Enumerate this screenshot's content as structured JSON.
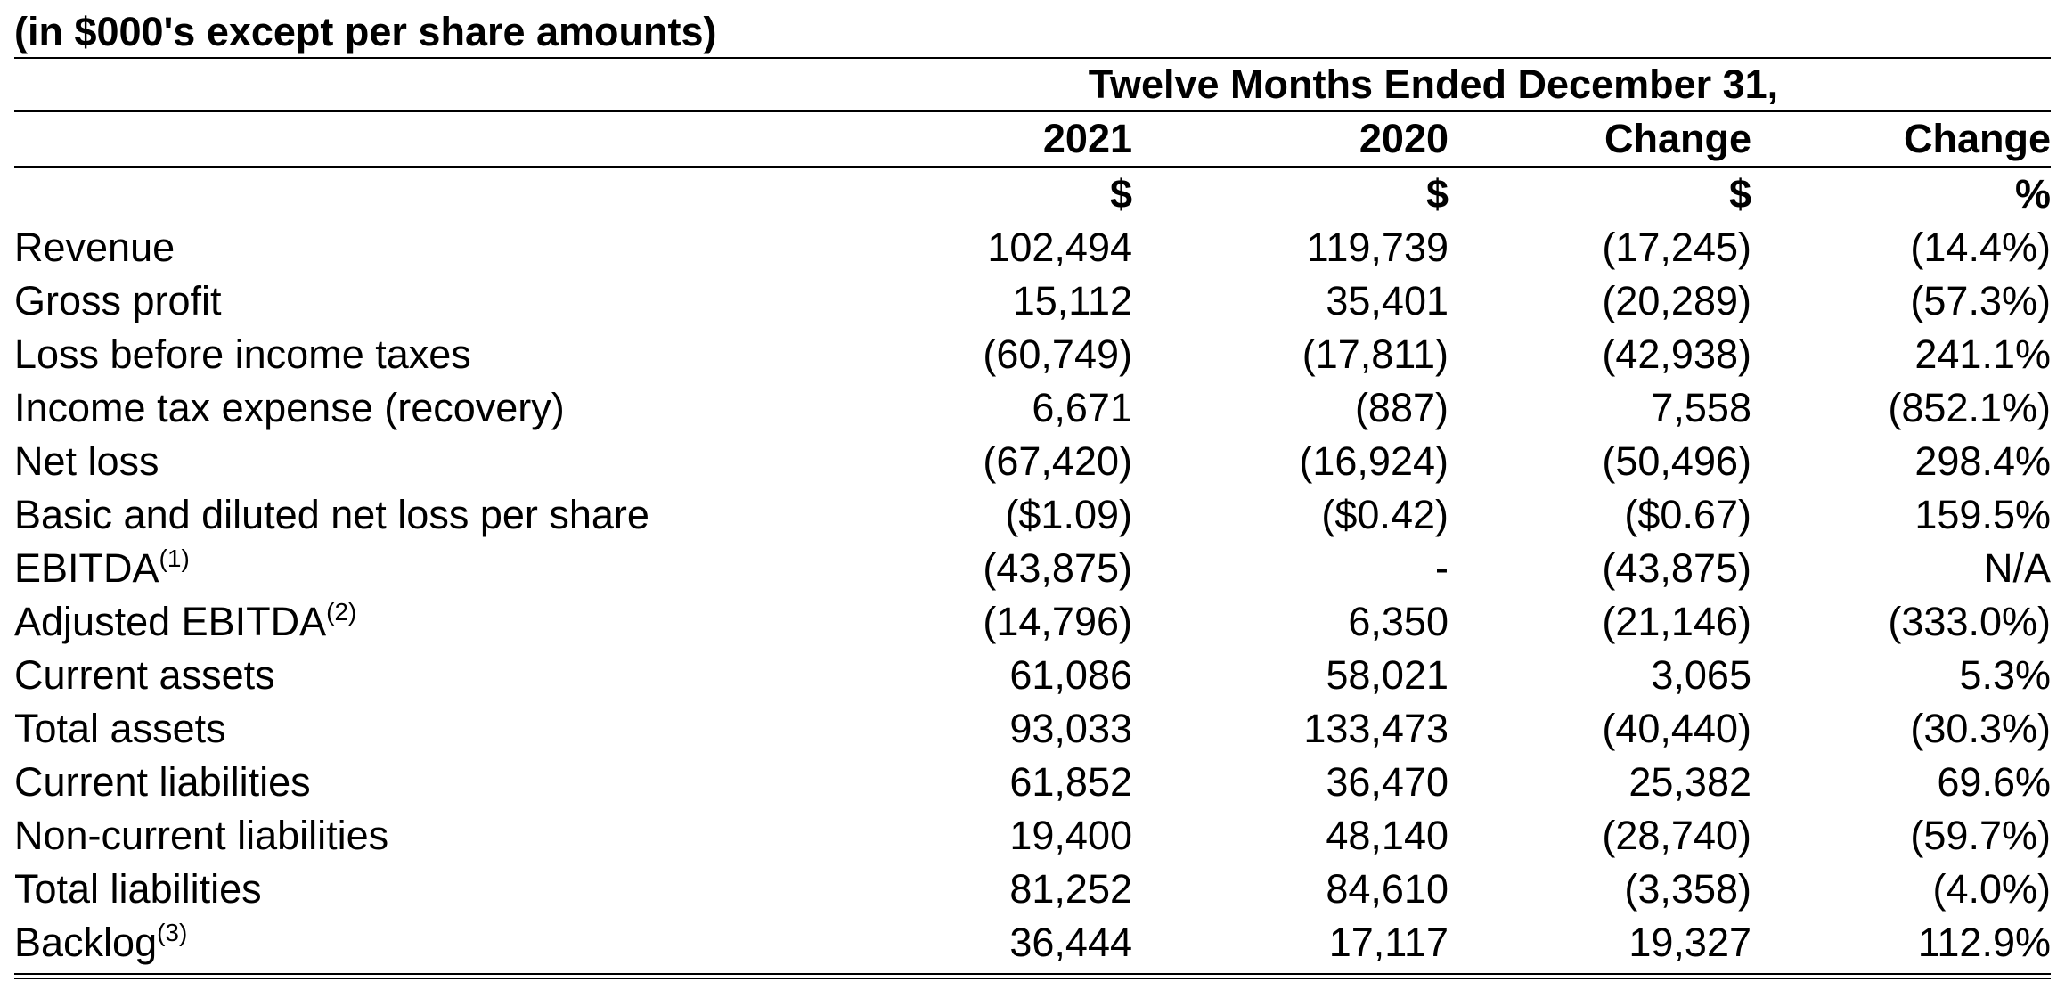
{
  "title": "(in $000's except per share amounts)",
  "period_header": "Twelve Months Ended December 31,",
  "columns": [
    "2021",
    "2020",
    "Change",
    "Change"
  ],
  "units": [
    "$",
    "$",
    "$",
    "%"
  ],
  "rows": [
    {
      "label": "Revenue",
      "note": "",
      "values": [
        "102,494",
        "119,739",
        "(17,245)",
        "(14.4%)"
      ]
    },
    {
      "label": "Gross profit",
      "note": "",
      "values": [
        "15,112",
        "35,401",
        "(20,289)",
        "(57.3%)"
      ]
    },
    {
      "label": "Loss before income taxes",
      "note": "",
      "values": [
        "(60,749)",
        "(17,811)",
        "(42,938)",
        "241.1%"
      ]
    },
    {
      "label": "Income tax expense (recovery)",
      "note": "",
      "values": [
        "6,671",
        "(887)",
        "7,558",
        "(852.1%)"
      ]
    },
    {
      "label": "Net loss",
      "note": "",
      "values": [
        "(67,420)",
        "(16,924)",
        "(50,496)",
        "298.4%"
      ]
    },
    {
      "label": "Basic and diluted net loss per share",
      "note": "",
      "values": [
        "($1.09)",
        "($0.42)",
        "($0.67)",
        "159.5%"
      ]
    },
    {
      "label": "EBITDA",
      "note": "(1)",
      "values": [
        "(43,875)",
        "-",
        "(43,875)",
        "N/A"
      ]
    },
    {
      "label": "Adjusted EBITDA",
      "note": "(2)",
      "values": [
        "(14,796)",
        "6,350",
        "(21,146)",
        "(333.0%)"
      ]
    },
    {
      "label": "Current assets",
      "note": "",
      "values": [
        "61,086",
        "58,021",
        "3,065",
        "5.3%"
      ]
    },
    {
      "label": "Total assets",
      "note": "",
      "values": [
        "93,033",
        "133,473",
        "(40,440)",
        "(30.3%)"
      ]
    },
    {
      "label": "Current liabilities",
      "note": "",
      "values": [
        "61,852",
        "36,470",
        "25,382",
        "69.6%"
      ]
    },
    {
      "label": "Non-current liabilities",
      "note": "",
      "values": [
        "19,400",
        "48,140",
        "(28,740)",
        "(59.7%)"
      ]
    },
    {
      "label": "Total liabilities",
      "note": "",
      "values": [
        "81,252",
        "84,610",
        "(3,358)",
        "(4.0%)"
      ]
    },
    {
      "label": "Backlog",
      "note": "(3)",
      "values": [
        "36,444",
        "17,117",
        "19,327",
        "112.9%"
      ]
    }
  ]
}
